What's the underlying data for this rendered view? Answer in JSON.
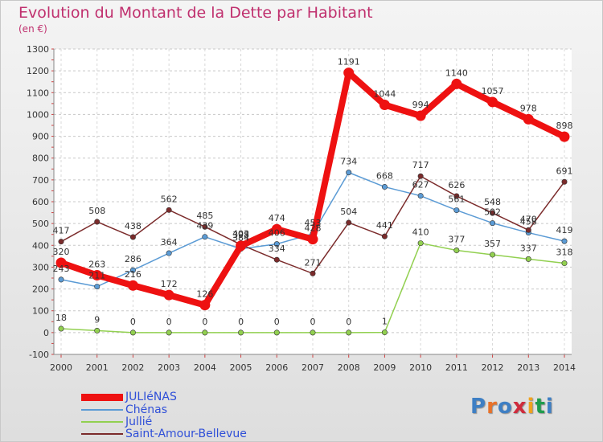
{
  "header": {
    "title": "Evolution du Montant de la Dette par Habitant",
    "unit": "(en €)"
  },
  "logo": {
    "text": "Proxiti",
    "colors": [
      "#3e7fc4",
      "#e8722a",
      "#3e7fc4",
      "#cf2b3c",
      "#f0a21e",
      "#1f9c4c",
      "#3e7fc4"
    ]
  },
  "chart_data": {
    "type": "line",
    "title": "Evolution du Montant de la Dette par Habitant",
    "subtitle": "(en €)",
    "xlabel": "",
    "ylabel": "",
    "x": [
      "2000",
      "2001",
      "2002",
      "2003",
      "2004",
      "2005",
      "2006",
      "2007",
      "2008",
      "2009",
      "2010",
      "2011",
      "2012",
      "2013",
      "2014"
    ],
    "ylim": [
      -100,
      1300
    ],
    "yticks": [
      -100,
      0,
      100,
      200,
      300,
      400,
      500,
      600,
      700,
      800,
      900,
      1000,
      1100,
      1200,
      1300
    ],
    "grid": true,
    "legend_position": "bottom-left",
    "series": [
      {
        "name": "JULIéNAS",
        "color": "#ee1111",
        "values": [
          320,
          263,
          216,
          172,
          126,
          398,
          474,
          428,
          1191,
          1044,
          994,
          1140,
          1057,
          978,
          898
        ],
        "labels": [
          "320",
          "263",
          "216",
          "172",
          "126",
          "398",
          "474",
          "428",
          "1191",
          "1044",
          "994",
          "1140",
          "1057",
          "978",
          "898"
        ],
        "emphasis": true
      },
      {
        "name": "Chénas",
        "color": "#5b9bd5",
        "values": [
          243,
          211,
          286,
          364,
          439,
          384,
          406,
          453,
          734,
          668,
          627,
          561,
          502,
          458,
          419
        ],
        "labels": [
          "243",
          "211",
          "286",
          "364",
          "439",
          "384",
          "406",
          "453",
          "734",
          "668",
          "627",
          "561",
          "502",
          "458",
          "419"
        ]
      },
      {
        "name": "Jullié",
        "color": "#92d050",
        "values": [
          18,
          9,
          0,
          0,
          0,
          0,
          0,
          0,
          0,
          1,
          410,
          377,
          357,
          337,
          318
        ],
        "labels": [
          "18",
          "9",
          "0",
          "0",
          "0",
          "0",
          "0",
          "0",
          "0",
          "1",
          "410",
          "377",
          "357",
          "337",
          "318"
        ]
      },
      {
        "name": "Saint-Amour-Bellevue",
        "color": "#7b2b2b",
        "values": [
          417,
          508,
          438,
          562,
          485,
          403,
          334,
          271,
          504,
          441,
          717,
          626,
          548,
          470,
          691
        ],
        "labels": [
          "417",
          "508",
          "438",
          "562",
          "485",
          "403",
          "334",
          "271",
          "504",
          "441",
          "717",
          "626",
          "548",
          "470",
          "691"
        ]
      }
    ]
  }
}
